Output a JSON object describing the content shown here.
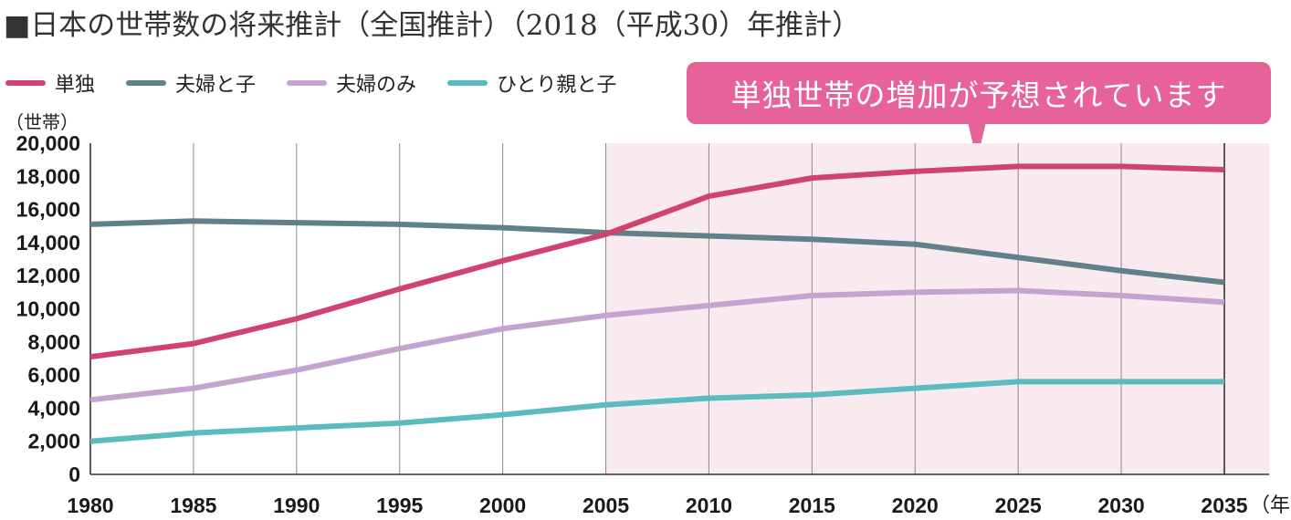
{
  "title": "■日本の世帯数の将来推計（全国推計）（2018（平成30）年推計）",
  "callout": {
    "text": "単独世帯の増加が予想されています",
    "color": "#E8629A"
  },
  "projection_band_color": "#F8EAEE",
  "chart_data": {
    "type": "line",
    "ylabel": "（世帯）",
    "xunit": "（年）",
    "x": [
      1980,
      1985,
      1990,
      1995,
      2000,
      2005,
      2010,
      2015,
      2020,
      2025,
      2030,
      2035
    ],
    "xtick_labels": [
      "1980",
      "1985",
      "1990",
      "1995",
      "2000",
      "2005",
      "2010",
      "2015",
      "2020",
      "2025",
      "2030",
      "2035"
    ],
    "yticks": [
      0,
      2000,
      4000,
      6000,
      8000,
      10000,
      12000,
      14000,
      16000,
      18000,
      20000
    ],
    "ytick_labels": [
      "0",
      "2,000",
      "4,000",
      "6,000",
      "8,000",
      "10,000",
      "12,000",
      "14,000",
      "16,000",
      "18,000",
      "20,000"
    ],
    "ylim": [
      0,
      20000
    ],
    "xlim": [
      1980,
      2035
    ],
    "projection_start": 2005,
    "grid": "vertical",
    "legend_position": "top-left",
    "series": [
      {
        "name": "単独",
        "color": "#D0436E",
        "values": [
          7100,
          7900,
          9400,
          11200,
          12900,
          14500,
          16800,
          17900,
          18300,
          18600,
          18600,
          18400
        ]
      },
      {
        "name": "夫婦と子",
        "color": "#62808A",
        "values": [
          15100,
          15300,
          15200,
          15100,
          14900,
          14600,
          14400,
          14200,
          13900,
          13100,
          12300,
          11600
        ]
      },
      {
        "name": "夫婦のみ",
        "color": "#C4A4CE",
        "values": [
          4500,
          5200,
          6300,
          7600,
          8800,
          9600,
          10200,
          10800,
          11000,
          11100,
          10800,
          10400
        ]
      },
      {
        "name": "ひとり親と子",
        "color": "#5CBBBD",
        "values": [
          2000,
          2500,
          2800,
          3100,
          3600,
          4200,
          4600,
          4800,
          5200,
          5600,
          5600,
          5600
        ]
      }
    ]
  }
}
